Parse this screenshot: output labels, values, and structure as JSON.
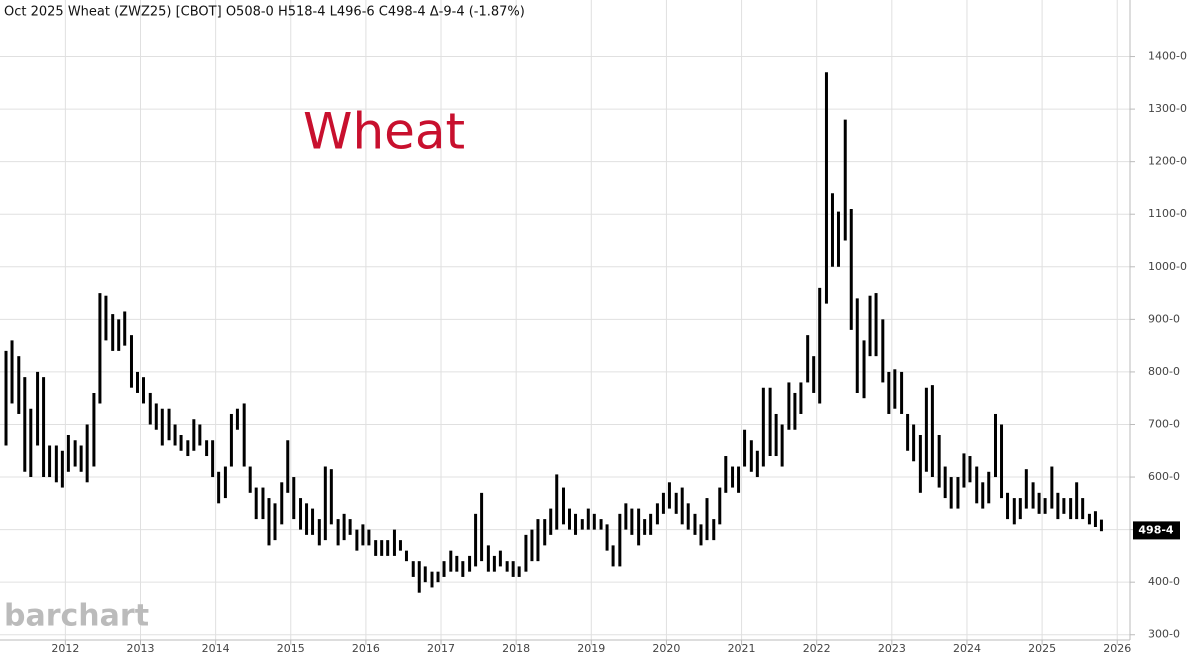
{
  "chart_data": {
    "type": "ohlc",
    "title": "Oct 2025 Wheat (ZWZ25) [CBOT] O508-0 H518-4 L496-6 C498-4 Δ-9-4 (-1.87%)",
    "annotation": "Wheat",
    "watermark": "barchart",
    "last_price": {
      "value": 498.5,
      "label": "498-4"
    },
    "color": "#000000",
    "annotation_color": "#c8102e",
    "grid": true,
    "xlim": [
      2011.13,
      2026.17
    ],
    "xticks": [
      2012,
      2013,
      2014,
      2015,
      2016,
      2017,
      2018,
      2019,
      2020,
      2021,
      2022,
      2023,
      2024,
      2025,
      2026
    ],
    "ylim": [
      290,
      1460
    ],
    "yticks": [
      {
        "value": 300,
        "label": "300-0"
      },
      {
        "value": 400,
        "label": "400-0"
      },
      {
        "value": 500,
        "label": "500-0"
      },
      {
        "value": 600,
        "label": "600-0"
      },
      {
        "value": 700,
        "label": "700-0"
      },
      {
        "value": 800,
        "label": "800-0"
      },
      {
        "value": 900,
        "label": "900-0"
      },
      {
        "value": 1000,
        "label": "1000-0"
      },
      {
        "value": 1100,
        "label": "1100-0"
      },
      {
        "value": 1200,
        "label": "1200-0"
      },
      {
        "value": 1300,
        "label": "1300-0"
      },
      {
        "value": 1400,
        "label": "1400-0"
      }
    ],
    "x": [
      2011.21,
      2011.29,
      2011.38,
      2011.46,
      2011.54,
      2011.63,
      2011.71,
      2011.79,
      2011.88,
      2011.96,
      2012.04,
      2012.13,
      2012.21,
      2012.29,
      2012.38,
      2012.46,
      2012.54,
      2012.63,
      2012.71,
      2012.79,
      2012.88,
      2012.96,
      2013.04,
      2013.13,
      2013.21,
      2013.29,
      2013.38,
      2013.46,
      2013.54,
      2013.63,
      2013.71,
      2013.79,
      2013.88,
      2013.96,
      2014.04,
      2014.13,
      2014.21,
      2014.29,
      2014.38,
      2014.46,
      2014.54,
      2014.63,
      2014.71,
      2014.79,
      2014.88,
      2014.96,
      2015.04,
      2015.13,
      2015.21,
      2015.29,
      2015.38,
      2015.46,
      2015.54,
      2015.63,
      2015.71,
      2015.79,
      2015.88,
      2015.96,
      2016.04,
      2016.13,
      2016.21,
      2016.29,
      2016.38,
      2016.46,
      2016.54,
      2016.63,
      2016.71,
      2016.79,
      2016.88,
      2016.96,
      2017.04,
      2017.13,
      2017.21,
      2017.29,
      2017.38,
      2017.46,
      2017.54,
      2017.63,
      2017.71,
      2017.79,
      2017.88,
      2017.96,
      2018.04,
      2018.13,
      2018.21,
      2018.29,
      2018.38,
      2018.46,
      2018.54,
      2018.63,
      2018.71,
      2018.79,
      2018.88,
      2018.96,
      2019.04,
      2019.13,
      2019.21,
      2019.29,
      2019.38,
      2019.46,
      2019.54,
      2019.63,
      2019.71,
      2019.79,
      2019.88,
      2019.96,
      2020.04,
      2020.13,
      2020.21,
      2020.29,
      2020.38,
      2020.46,
      2020.54,
      2020.63,
      2020.71,
      2020.79,
      2020.88,
      2020.96,
      2021.04,
      2021.13,
      2021.21,
      2021.29,
      2021.38,
      2021.46,
      2021.54,
      2021.63,
      2021.71,
      2021.79,
      2021.88,
      2021.96,
      2022.04,
      2022.13,
      2022.21,
      2022.29,
      2022.38,
      2022.46,
      2022.54,
      2022.63,
      2022.71,
      2022.79,
      2022.88,
      2022.96,
      2023.04,
      2023.13,
      2023.21,
      2023.29,
      2023.38,
      2023.46,
      2023.54,
      2023.63,
      2023.71,
      2023.79,
      2023.88,
      2023.96,
      2024.04,
      2024.13,
      2024.21,
      2024.29,
      2024.38,
      2024.46,
      2024.54,
      2024.63,
      2024.71,
      2024.79,
      2024.88,
      2024.96,
      2025.04,
      2025.13,
      2025.21,
      2025.29,
      2025.38,
      2025.46,
      2025.54,
      2025.63,
      2025.71,
      2025.79
    ],
    "high": [
      840,
      860,
      830,
      790,
      730,
      800,
      790,
      660,
      660,
      650,
      680,
      670,
      660,
      700,
      760,
      950,
      945,
      910,
      900,
      915,
      870,
      800,
      790,
      760,
      740,
      730,
      730,
      700,
      680,
      670,
      710,
      700,
      670,
      670,
      610,
      620,
      720,
      730,
      740,
      620,
      580,
      580,
      560,
      550,
      590,
      670,
      600,
      560,
      550,
      540,
      520,
      620,
      615,
      520,
      530,
      520,
      500,
      510,
      500,
      480,
      480,
      480,
      500,
      480,
      460,
      440,
      440,
      430,
      420,
      420,
      440,
      460,
      450,
      440,
      450,
      530,
      570,
      470,
      450,
      460,
      440,
      440,
      430,
      490,
      500,
      520,
      520,
      540,
      605,
      580,
      540,
      530,
      520,
      540,
      530,
      520,
      510,
      470,
      530,
      550,
      540,
      540,
      520,
      530,
      550,
      570,
      590,
      570,
      580,
      550,
      530,
      510,
      560,
      520,
      580,
      640,
      620,
      620,
      690,
      670,
      650,
      770,
      770,
      720,
      700,
      780,
      760,
      780,
      870,
      830,
      960,
      1370,
      1140,
      1105,
      1280,
      1110,
      940,
      860,
      945,
      950,
      900,
      800,
      805,
      800,
      720,
      700,
      680,
      770,
      775,
      680,
      620,
      600,
      600,
      645,
      640,
      620,
      590,
      610,
      720,
      700,
      570,
      560,
      560,
      615,
      590,
      570,
      560,
      620,
      570,
      560,
      560,
      590,
      560,
      530,
      535,
      519
    ],
    "low": [
      660,
      740,
      720,
      610,
      600,
      660,
      600,
      600,
      590,
      580,
      610,
      620,
      610,
      590,
      620,
      740,
      860,
      840,
      840,
      850,
      770,
      760,
      740,
      700,
      690,
      660,
      670,
      660,
      650,
      640,
      650,
      660,
      640,
      600,
      550,
      560,
      620,
      690,
      620,
      570,
      520,
      520,
      470,
      480,
      510,
      570,
      520,
      500,
      490,
      490,
      470,
      480,
      510,
      470,
      480,
      490,
      460,
      470,
      470,
      450,
      450,
      450,
      450,
      460,
      440,
      410,
      380,
      400,
      390,
      400,
      410,
      420,
      420,
      410,
      420,
      430,
      440,
      420,
      420,
      430,
      420,
      410,
      410,
      420,
      440,
      440,
      470,
      490,
      500,
      510,
      500,
      490,
      500,
      500,
      500,
      500,
      460,
      430,
      430,
      500,
      490,
      470,
      490,
      490,
      510,
      530,
      540,
      530,
      510,
      500,
      490,
      470,
      480,
      480,
      510,
      570,
      580,
      570,
      620,
      610,
      600,
      620,
      640,
      640,
      620,
      690,
      690,
      720,
      780,
      760,
      740,
      930,
      1000,
      1000,
      1050,
      880,
      760,
      750,
      830,
      830,
      780,
      720,
      730,
      720,
      650,
      630,
      570,
      610,
      600,
      580,
      560,
      540,
      540,
      580,
      590,
      550,
      540,
      550,
      600,
      560,
      520,
      510,
      520,
      540,
      540,
      530,
      530,
      540,
      520,
      530,
      520,
      520,
      520,
      510,
      505,
      497
    ]
  }
}
